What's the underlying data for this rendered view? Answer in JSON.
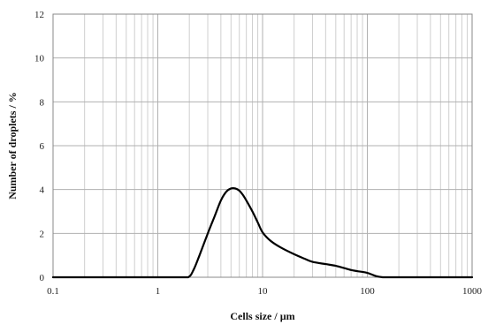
{
  "chart_data": {
    "type": "line",
    "title": "",
    "xlabel": "Cells size / µm",
    "ylabel": "Number of droplets / %",
    "x_scale": "log",
    "xlim": [
      0.1,
      1000
    ],
    "ylim": [
      0,
      12
    ],
    "x_tick_labels": [
      "0.1",
      "1",
      "10",
      "100",
      "1000"
    ],
    "x_ticks": [
      0.1,
      1,
      10,
      100,
      1000
    ],
    "y_tick_labels": [
      "0",
      "2",
      "4",
      "6",
      "8",
      "10",
      "12"
    ],
    "y_ticks": [
      0,
      2,
      4,
      6,
      8,
      10,
      12
    ],
    "grid": true,
    "legend": "none",
    "line_color": "#000000",
    "series": [
      {
        "x": [
          0.1,
          0.5,
          1,
          1.5,
          1.95,
          2.2,
          2.5,
          3,
          3.5,
          4,
          4.5,
          5,
          5.5,
          6,
          6.5,
          7,
          8,
          9,
          10,
          12,
          15,
          20,
          25,
          30,
          40,
          50,
          60,
          70,
          80,
          100,
          120,
          140,
          160,
          200,
          500,
          1000
        ],
        "y": [
          0,
          0,
          0,
          0,
          0,
          0.35,
          1.0,
          2.0,
          2.8,
          3.5,
          3.9,
          4.05,
          4.05,
          3.95,
          3.75,
          3.5,
          3.0,
          2.5,
          2.05,
          1.65,
          1.35,
          1.05,
          0.85,
          0.7,
          0.6,
          0.52,
          0.42,
          0.33,
          0.28,
          0.2,
          0.06,
          0.0,
          0,
          0,
          0,
          0
        ]
      }
    ]
  }
}
